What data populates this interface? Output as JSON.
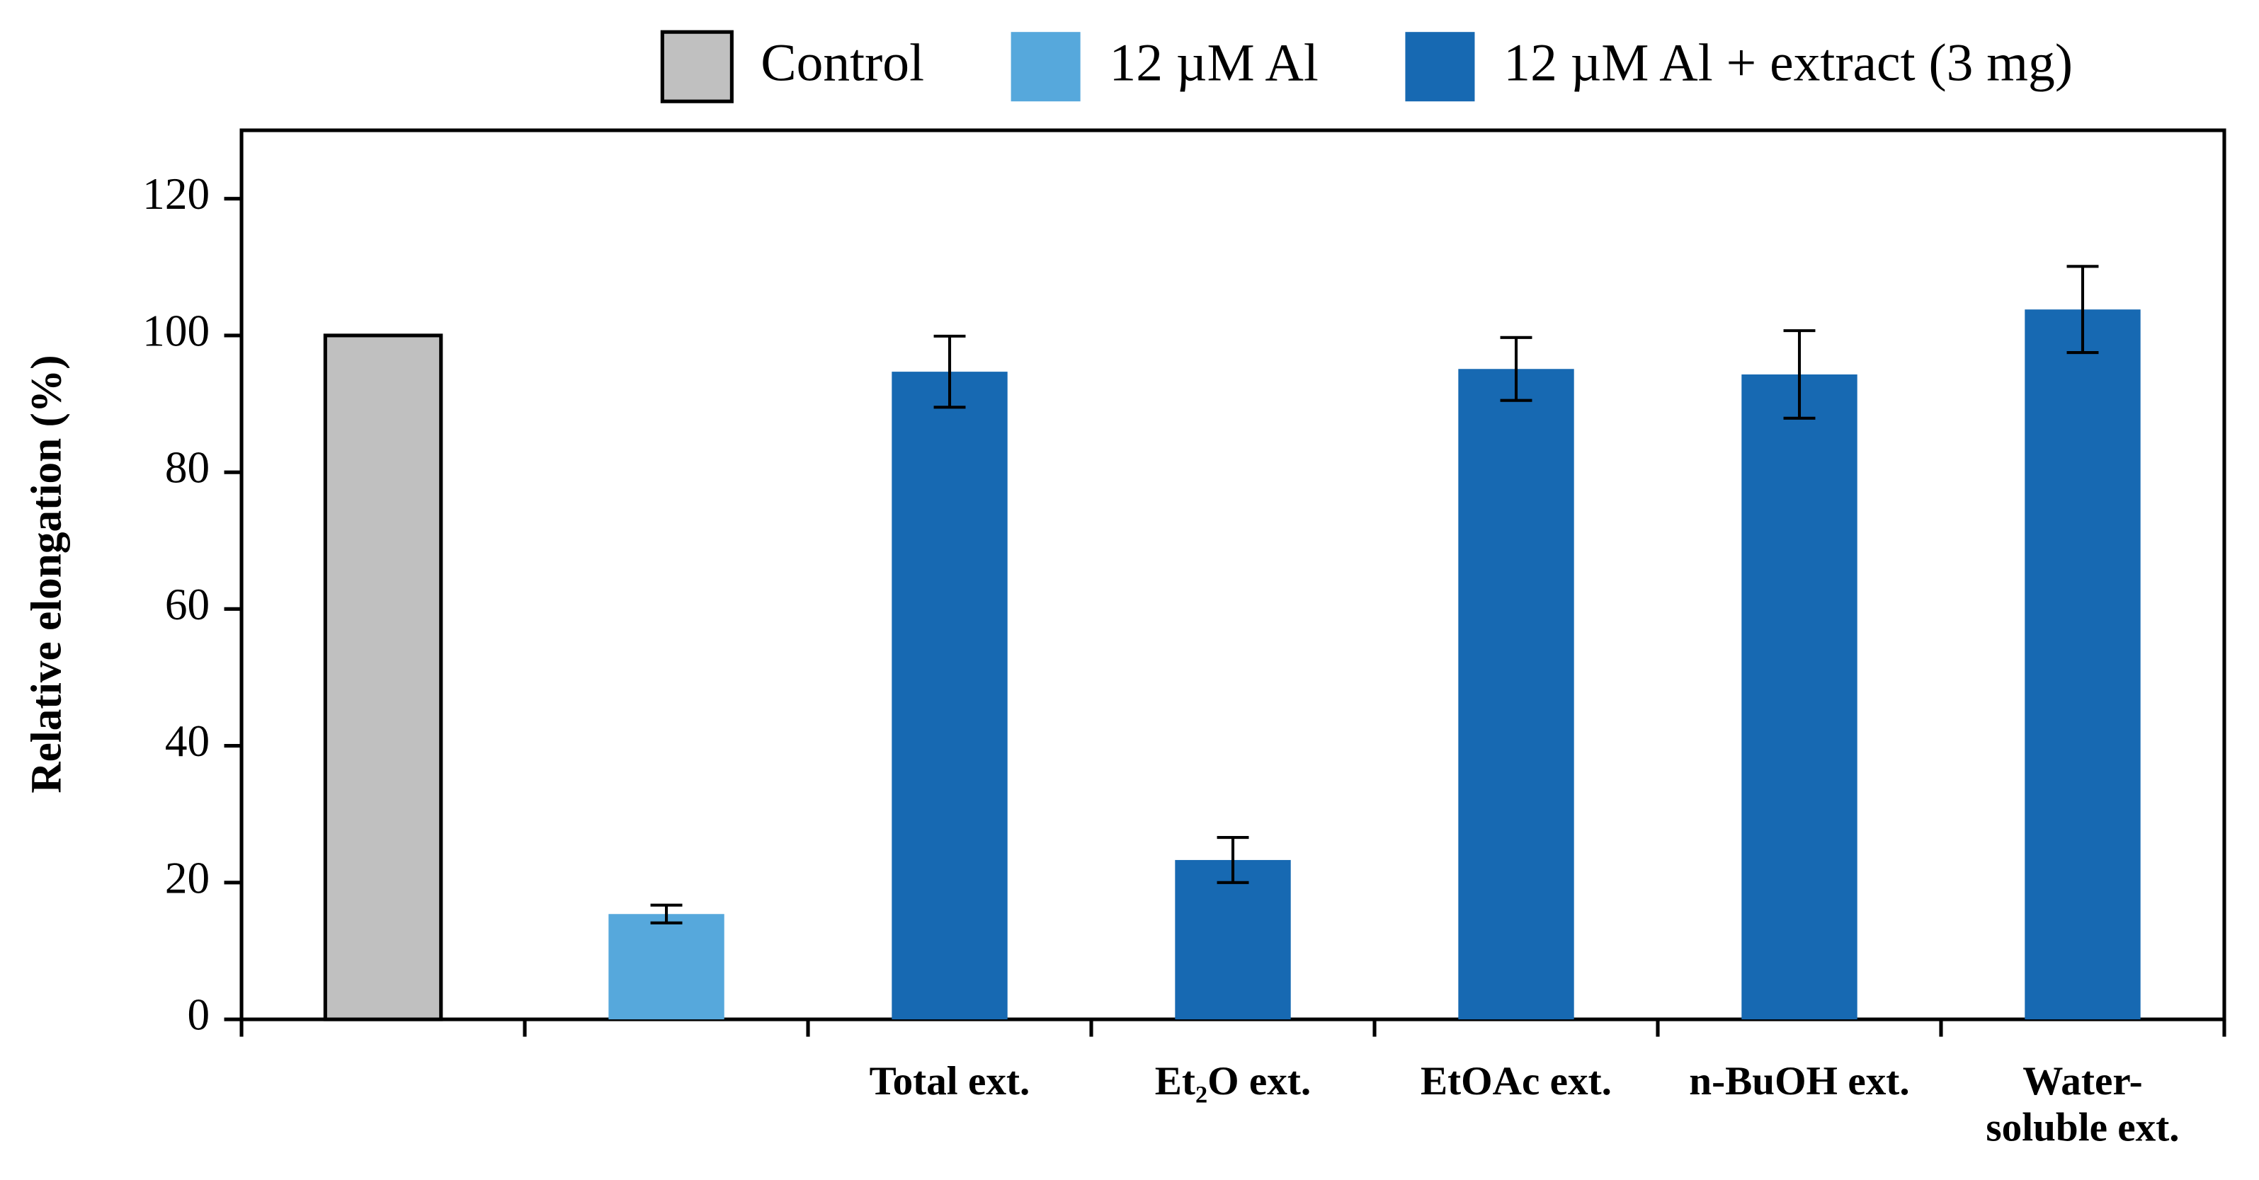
{
  "chart_data": {
    "type": "bar",
    "y_label": "Relative elongation (%)",
    "categories": [
      null,
      null,
      "Total ext.",
      "Et₂O ext.",
      "EtOAc ext.",
      "n-BuOH ext.",
      "Water-\nsoluble ext."
    ],
    "series": [
      {
        "name": "Control",
        "color": "#c0c0c0",
        "border": "#000000",
        "values": [
          100,
          null,
          null,
          null,
          null,
          null,
          null
        ],
        "errors": [
          null,
          null,
          null,
          null,
          null,
          null,
          null
        ]
      },
      {
        "name": "12 µM Al",
        "color": "#56a8dc",
        "values": [
          null,
          15.4,
          null,
          null,
          null,
          null,
          null
        ],
        "errors": [
          null,
          1.3,
          null,
          null,
          null,
          null,
          null
        ]
      },
      {
        "name": "12 µM Al + extract (3 mg)",
        "color": "#1769b2",
        "values": [
          null,
          null,
          94.7,
          23.3,
          95.1,
          94.3,
          103.8
        ],
        "errors": [
          null,
          null,
          5.2,
          3.3,
          4.6,
          6.4,
          6.3
        ]
      }
    ],
    "ylim": [
      0,
      130
    ],
    "yticks": [
      0,
      20,
      40,
      60,
      80,
      100,
      120
    ],
    "legend": "top"
  }
}
